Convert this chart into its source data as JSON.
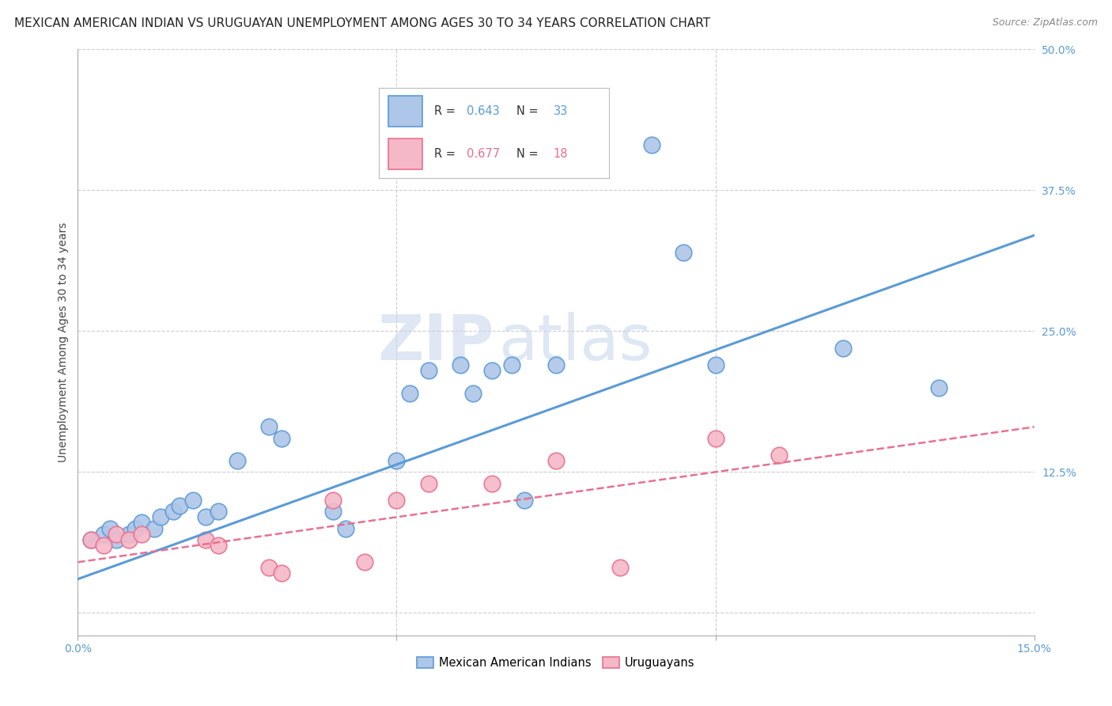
{
  "title": "MEXICAN AMERICAN INDIAN VS URUGUAYAN UNEMPLOYMENT AMONG AGES 30 TO 34 YEARS CORRELATION CHART",
  "source": "Source: ZipAtlas.com",
  "ylabel": "Unemployment Among Ages 30 to 34 years",
  "x_min": 0.0,
  "x_max": 0.15,
  "y_min": -0.02,
  "y_max": 0.5,
  "y_ticks_right": [
    0.0,
    0.125,
    0.25,
    0.375,
    0.5
  ],
  "y_tick_labels_right": [
    "",
    "12.5%",
    "25.0%",
    "37.5%",
    "50.0%"
  ],
  "legend_labels_bottom": [
    "Mexican American Indians",
    "Uruguayans"
  ],
  "blue_scatter": [
    [
      0.002,
      0.065
    ],
    [
      0.004,
      0.07
    ],
    [
      0.005,
      0.075
    ],
    [
      0.006,
      0.065
    ],
    [
      0.008,
      0.07
    ],
    [
      0.009,
      0.075
    ],
    [
      0.01,
      0.08
    ],
    [
      0.012,
      0.075
    ],
    [
      0.013,
      0.085
    ],
    [
      0.015,
      0.09
    ],
    [
      0.016,
      0.095
    ],
    [
      0.018,
      0.1
    ],
    [
      0.02,
      0.085
    ],
    [
      0.022,
      0.09
    ],
    [
      0.025,
      0.135
    ],
    [
      0.03,
      0.165
    ],
    [
      0.032,
      0.155
    ],
    [
      0.04,
      0.09
    ],
    [
      0.042,
      0.075
    ],
    [
      0.05,
      0.135
    ],
    [
      0.052,
      0.195
    ],
    [
      0.055,
      0.215
    ],
    [
      0.06,
      0.22
    ],
    [
      0.062,
      0.195
    ],
    [
      0.065,
      0.215
    ],
    [
      0.068,
      0.22
    ],
    [
      0.07,
      0.1
    ],
    [
      0.075,
      0.22
    ],
    [
      0.09,
      0.415
    ],
    [
      0.095,
      0.32
    ],
    [
      0.1,
      0.22
    ],
    [
      0.12,
      0.235
    ],
    [
      0.135,
      0.2
    ]
  ],
  "pink_scatter": [
    [
      0.002,
      0.065
    ],
    [
      0.004,
      0.06
    ],
    [
      0.006,
      0.07
    ],
    [
      0.008,
      0.065
    ],
    [
      0.01,
      0.07
    ],
    [
      0.02,
      0.065
    ],
    [
      0.022,
      0.06
    ],
    [
      0.03,
      0.04
    ],
    [
      0.032,
      0.035
    ],
    [
      0.04,
      0.1
    ],
    [
      0.045,
      0.045
    ],
    [
      0.05,
      0.1
    ],
    [
      0.055,
      0.115
    ],
    [
      0.065,
      0.115
    ],
    [
      0.075,
      0.135
    ],
    [
      0.085,
      0.04
    ],
    [
      0.1,
      0.155
    ],
    [
      0.11,
      0.14
    ]
  ],
  "blue_line_x": [
    0.0,
    0.15
  ],
  "blue_line_y": [
    0.03,
    0.335
  ],
  "pink_line_x": [
    0.0,
    0.15
  ],
  "pink_line_y": [
    0.045,
    0.165
  ],
  "blue_color": "#5b9bd5",
  "pink_color": "#e87090",
  "blue_scatter_facecolor": "#aec6e8",
  "pink_scatter_facecolor": "#f4b8c8",
  "background_color": "#ffffff",
  "grid_color": "#cccccc",
  "watermark_zip": "ZIP",
  "watermark_atlas": "atlas",
  "title_fontsize": 11,
  "axis_label_fontsize": 10,
  "tick_fontsize": 10,
  "legend_R_blue": "0.643",
  "legend_N_blue": "33",
  "legend_R_pink": "0.677",
  "legend_N_pink": "18"
}
